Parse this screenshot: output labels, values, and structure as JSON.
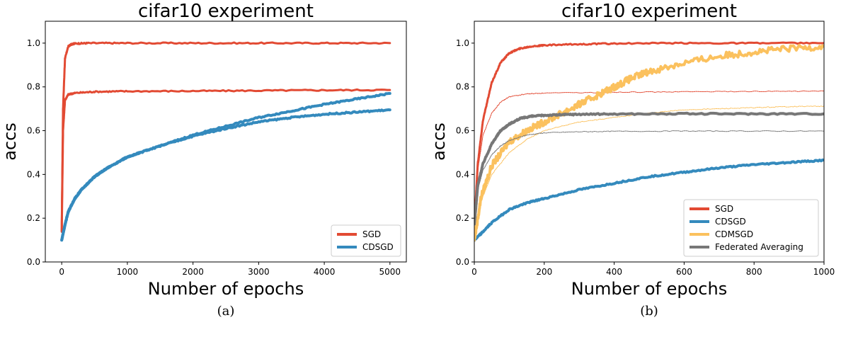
{
  "chart_data": [
    {
      "type": "line",
      "title": "cifar10 experiment",
      "xlabel": "Number of epochs",
      "ylabel": "accs",
      "xlim": [
        -250,
        5250
      ],
      "ylim": [
        0.0,
        1.1
      ],
      "xticks": [
        0,
        1000,
        2000,
        3000,
        4000,
        5000
      ],
      "yticks": [
        0.0,
        0.2,
        0.4,
        0.6,
        0.8,
        1.0
      ],
      "caption": "(a)",
      "legend_position": "lower-right",
      "legend": [
        "SGD",
        "CDSGD"
      ],
      "series": [
        {
          "name": "SGD",
          "role": "train",
          "color": "#e24a33",
          "width": 3,
          "x": [
            0,
            20,
            50,
            100,
            150,
            200,
            400,
            1000,
            2000,
            3000,
            4000,
            5000
          ],
          "y": [
            0.14,
            0.7,
            0.93,
            0.985,
            0.995,
            0.998,
            1.0,
            1.0,
            1.0,
            1.0,
            1.0,
            1.0
          ]
        },
        {
          "name": "SGD",
          "role": "test",
          "color": "#e24a33",
          "width": 3,
          "x": [
            0,
            20,
            50,
            100,
            200,
            500,
            1000,
            2000,
            3000,
            4000,
            5000
          ],
          "y": [
            0.14,
            0.6,
            0.74,
            0.765,
            0.772,
            0.778,
            0.78,
            0.781,
            0.783,
            0.785,
            0.786
          ]
        },
        {
          "name": "CDSGD",
          "role": "train",
          "color": "#348abd",
          "width": 4,
          "x": [
            0,
            50,
            100,
            200,
            300,
            500,
            700,
            1000,
            1500,
            2000,
            2500,
            3000,
            3500,
            4000,
            4500,
            5000
          ],
          "y": [
            0.1,
            0.17,
            0.23,
            0.29,
            0.33,
            0.39,
            0.43,
            0.48,
            0.53,
            0.58,
            0.62,
            0.66,
            0.69,
            0.72,
            0.745,
            0.77
          ]
        },
        {
          "name": "CDSGD",
          "role": "test",
          "color": "#348abd",
          "width": 4,
          "x": [
            0,
            50,
            100,
            200,
            300,
            500,
            700,
            1000,
            1500,
            2000,
            2500,
            3000,
            3500,
            4000,
            4500,
            5000
          ],
          "y": [
            0.1,
            0.17,
            0.23,
            0.29,
            0.33,
            0.39,
            0.43,
            0.48,
            0.53,
            0.575,
            0.61,
            0.64,
            0.66,
            0.675,
            0.685,
            0.695
          ]
        }
      ]
    },
    {
      "type": "line",
      "title": "cifar10 experiment",
      "xlabel": "Number of epochs",
      "ylabel": "accs",
      "xlim": [
        0,
        1000
      ],
      "ylim": [
        0.0,
        1.1
      ],
      "xticks": [
        0,
        200,
        400,
        600,
        800,
        1000
      ],
      "yticks": [
        0.0,
        0.2,
        0.4,
        0.6,
        0.8,
        1.0
      ],
      "caption": "(b)",
      "legend_position": "lower-right",
      "legend": [
        "SGD",
        "CDSGD",
        "CDMSGD",
        "Federated Averaging"
      ],
      "series": [
        {
          "name": "SGD",
          "role": "train",
          "color": "#e24a33",
          "width": 3,
          "x": [
            0,
            10,
            25,
            50,
            75,
            100,
            130,
            160,
            200,
            300,
            400,
            600,
            800,
            1000
          ],
          "y": [
            0.17,
            0.45,
            0.65,
            0.82,
            0.91,
            0.955,
            0.975,
            0.985,
            0.99,
            0.995,
            0.998,
            1.0,
            1.0,
            1.0
          ]
        },
        {
          "name": "SGD",
          "role": "test",
          "color": "#e24a33",
          "width": 1,
          "x": [
            0,
            10,
            25,
            50,
            75,
            100,
            150,
            200,
            400,
            600,
            800,
            1000
          ],
          "y": [
            0.17,
            0.42,
            0.58,
            0.68,
            0.73,
            0.755,
            0.768,
            0.772,
            0.775,
            0.778,
            0.779,
            0.781
          ]
        },
        {
          "name": "CDSGD",
          "role": "train",
          "color": "#348abd",
          "width": 4,
          "x": [
            0,
            20,
            50,
            100,
            150,
            200,
            300,
            400,
            500,
            600,
            700,
            800,
            900,
            1000
          ],
          "y": [
            0.1,
            0.13,
            0.18,
            0.24,
            0.27,
            0.29,
            0.33,
            0.36,
            0.39,
            0.41,
            0.43,
            0.445,
            0.455,
            0.465
          ]
        },
        {
          "name": "CDMSGD",
          "role": "train",
          "color": "#fbc15e",
          "width": 4,
          "x": [
            0,
            20,
            50,
            100,
            150,
            200,
            250,
            300,
            350,
            400,
            450,
            500,
            600,
            700,
            800,
            900,
            1000
          ],
          "y": [
            0.1,
            0.3,
            0.44,
            0.55,
            0.6,
            0.64,
            0.68,
            0.72,
            0.76,
            0.8,
            0.84,
            0.87,
            0.91,
            0.94,
            0.96,
            0.975,
            0.985
          ]
        },
        {
          "name": "CDMSGD",
          "role": "test",
          "color": "#fbc15e",
          "width": 1,
          "x": [
            0,
            20,
            50,
            100,
            150,
            200,
            300,
            400,
            500,
            600,
            700,
            800,
            900,
            1000
          ],
          "y": [
            0.1,
            0.28,
            0.4,
            0.5,
            0.56,
            0.6,
            0.64,
            0.66,
            0.68,
            0.695,
            0.7,
            0.705,
            0.71,
            0.712
          ]
        },
        {
          "name": "Federated Averaging",
          "role": "train",
          "color": "#777777",
          "width": 4,
          "x": [
            0,
            10,
            25,
            50,
            75,
            100,
            130,
            160,
            200,
            250,
            300,
            400,
            600,
            800,
            1000
          ],
          "y": [
            0.17,
            0.35,
            0.45,
            0.54,
            0.6,
            0.63,
            0.655,
            0.665,
            0.67,
            0.673,
            0.675,
            0.676,
            0.677,
            0.677,
            0.677
          ]
        },
        {
          "name": "Federated Averaging",
          "role": "test",
          "color": "#777777",
          "width": 1,
          "x": [
            0,
            10,
            25,
            50,
            75,
            100,
            150,
            200,
            300,
            400,
            600,
            800,
            1000
          ],
          "y": [
            0.17,
            0.33,
            0.42,
            0.49,
            0.53,
            0.555,
            0.58,
            0.59,
            0.595,
            0.597,
            0.598,
            0.598,
            0.598
          ]
        }
      ]
    }
  ]
}
